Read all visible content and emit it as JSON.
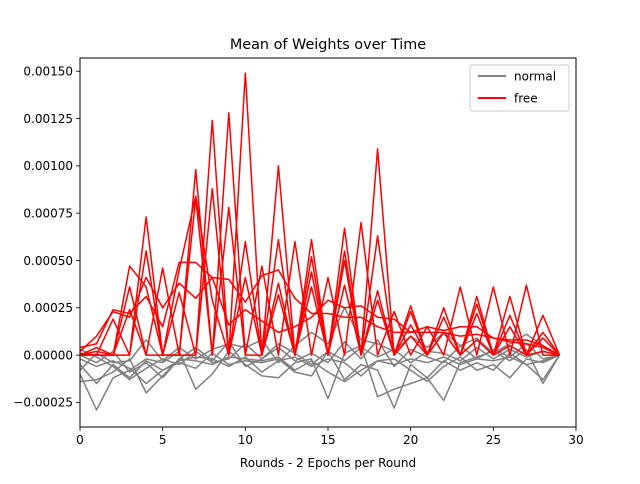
{
  "chart_data": {
    "type": "line",
    "title": "Mean of Weights over Time",
    "xlabel": "Rounds - 2 Epochs per Round",
    "ylabel": "",
    "xlim": [
      0,
      30
    ],
    "ylim": [
      -0.00038,
      0.00157
    ],
    "xticks": [
      0,
      5,
      10,
      15,
      20,
      25,
      30
    ],
    "xtick_labels": [
      "0",
      "5",
      "10",
      "15",
      "20",
      "25",
      "30"
    ],
    "yticks": [
      -0.00025,
      0,
      0.00025,
      0.0005,
      0.00075,
      0.001,
      0.00125,
      0.0015
    ],
    "ytick_labels": [
      "−0.00025",
      "0.00000",
      "0.00025",
      "0.00050",
      "0.00075",
      "0.00100",
      "0.00125",
      "0.00150"
    ],
    "grid": false,
    "legend": {
      "placement": "top-right",
      "entries": [
        {
          "label": "normal",
          "color": "#808080"
        },
        {
          "label": "free",
          "color": "#ff0000"
        }
      ]
    },
    "x": [
      0,
      1,
      2,
      3,
      4,
      5,
      6,
      7,
      8,
      9,
      10,
      11,
      12,
      13,
      14,
      15,
      16,
      17,
      18,
      19,
      20,
      21,
      22,
      23,
      24,
      25,
      26,
      27,
      28,
      29
    ],
    "series_groups": [
      {
        "label": "normal",
        "color": "#808080",
        "series": [
          [
            -0.0001,
            -0.00029,
            -0.00012,
            -8e-05,
            -2e-05,
            -4e-05,
            2e-05,
            -0.00018,
            -0.0001,
            2e-05,
            -5e-05,
            -0.00011,
            -0.00012,
            -4e-05,
            -2e-05,
            -0.00023,
            1e-05,
            5e-05,
            -0.00022,
            -0.00018,
            -0.00015,
            -0.00012,
            -0.00024,
            -4e-05,
            -1e-05,
            2e-05,
            -3e-05,
            3e-05,
            -0.00015,
            0
          ],
          [
            -5e-05,
            -0.00015,
            -5e-05,
            -0.00012,
            -3e-05,
            -8e-05,
            -4e-05,
            -7e-05,
            1e-05,
            -5e-05,
            -3e-05,
            -4e-05,
            -2e-05,
            -9e-05,
            -0.00011,
            2e-05,
            -0.00013,
            -5e-05,
            -8e-05,
            -0.00028,
            -5e-05,
            -0.00012,
            -3e-05,
            -8e-05,
            -4e-05,
            -8e-05,
            1e-05,
            -5e-05,
            -0.00013,
            0
          ],
          [
            -0.00014,
            -0.00013,
            -9e-05,
            -2e-05,
            -0.0002,
            -0.00011,
            -2e-05,
            -3e-05,
            -5e-05,
            -1e-05,
            -2e-05,
            -3e-05,
            -1e-05,
            -8e-05,
            -3e-05,
            -9e-05,
            -0.00014,
            -8e-05,
            -3e-05,
            -2e-05,
            -8e-05,
            -0.00014,
            -6e-05,
            -1e-05,
            -8e-05,
            -5e-05,
            -0.00012,
            -2e-05,
            -4e-05,
            0
          ],
          [
            -2e-05,
            -6e-05,
            -3e-05,
            -7e-05,
            -0.00015,
            -8e-05,
            -3e-05,
            -1e-05,
            -2e-05,
            -6e-05,
            -1e-05,
            -9e-05,
            -3e-05,
            -1e-05,
            -6e-05,
            -2e-05,
            -4e-05,
            -0.00011,
            -3e-05,
            -5e-05,
            -2e-05,
            -4e-05,
            -1e-05,
            -5e-05,
            -2e-05,
            -3e-05,
            -1e-05,
            -5e-05,
            -3e-05,
            0
          ],
          [
            3e-05,
            -1e-05,
            -6e-05,
            -0.00013,
            -7e-05,
            -2e-05,
            -5e-05,
            2e-05,
            -4e-05,
            -2e-05,
            6e-05,
            -2e-05,
            4e-05,
            -3e-05,
            1e-05,
            -4e-05,
            7e-05,
            -2e-05,
            8e-05,
            -6e-05,
            3e-05,
            -1e-05,
            -4e-05,
            5e-05,
            -2e-05,
            3e-05,
            -1e-05,
            6e-05,
            -2e-05,
            0
          ],
          [
            -8e-05,
            1e-05,
            -4e-05,
            -3e-05,
            8e-05,
            -3e-05,
            4e-05,
            -2e-05,
            3e-05,
            6e-05,
            4e-05,
            8e-05,
            -4e-05,
            5e-05,
            0.00012,
            6e-05,
            0.00025,
            8e-05,
            6e-05,
            2e-05,
            0.0001,
            4e-05,
            0.00012,
            5e-05,
            9e-05,
            1e-05,
            6e-05,
            0.00011,
            5e-05,
            0
          ],
          [
            0,
            -4e-05,
            2e-05,
            -9e-05,
            -4e-05,
            -0.00012,
            -2e-05,
            4e-05,
            -3e-05,
            7e-05,
            -6e-05,
            -2e-05,
            6e-05,
            1e-05,
            -5e-05,
            2e-05,
            -3e-05,
            4e-05,
            -1e-05,
            3e-05,
            -4e-05,
            2e-05,
            1e-05,
            -3e-05,
            4e-05,
            -2e-05,
            3e-05,
            -1e-05,
            2e-05,
            0
          ]
        ]
      },
      {
        "label": "free",
        "color": "#ff0000",
        "series": [
          [
            4e-05,
            6e-05,
            0.00024,
            0.00022,
            0.00031,
            0.00015,
            0.00049,
            0.00049,
            0.00041,
            0.0004,
            0.00028,
            0.00042,
            0.00045,
            0.0003,
            0.00022,
            0.00022,
            0.0002,
            0.0002,
            0.00015,
            0.00012,
            0.00012,
            0.00012,
            0.00012,
            0.0001,
            0.00011,
            9e-05,
            7e-05,
            6e-05,
            4e-05,
            0
          ],
          [
            2e-05,
            0.0001,
            0.00023,
            0.0002,
            0.00041,
            0.00025,
            0.00038,
            0.0003,
            0.00041,
            0.00016,
            0.00024,
            0.00018,
            0.00012,
            0.00015,
            0.0002,
            0.00029,
            0.00025,
            0.00026,
            0.0002,
            0.00019,
            0.00012,
            0.00015,
            0.00013,
            0.00015,
            0.00015,
            9e-05,
            8e-05,
            8e-05,
            5e-05,
            0
          ],
          [
            0,
            4e-05,
            0,
            0.00047,
            0.00036,
            0,
            0.00045,
            0.00084,
            0.00029,
            0,
            0.0006,
            0,
            0.00032,
            0,
            0.00036,
            0,
            0.0005,
            0,
            0.00029,
            0,
            0.00016,
            0,
            0.00012,
            0,
            8e-05,
            0,
            5e-05,
            0,
            2e-05,
            0
          ],
          [
            0,
            0,
            0.00019,
            0,
            0.00073,
            0,
            0,
            0.00098,
            0,
            0.00128,
            0,
            0.00047,
            0,
            0.0006,
            0,
            0.00041,
            0,
            0.0007,
            0,
            0.00023,
            0,
            0.00015,
            0,
            0.00036,
            0,
            0.00036,
            0,
            0.00037,
            0,
            0
          ],
          [
            1e-05,
            0,
            0,
            0.00036,
            0,
            0.00046,
            0,
            0,
            0.00124,
            0,
            0.00149,
            0,
            0.001,
            0,
            0.00061,
            0,
            0.00037,
            0,
            0.00109,
            0,
            0.00026,
            0,
            0.00025,
            0,
            0.00031,
            0,
            0.00031,
            0,
            0.00021,
            0
          ],
          [
            0,
            0,
            0,
            0,
            0.00055,
            0,
            0,
            0.00083,
            0,
            0.00078,
            0,
            0,
            0.00061,
            0,
            0.00044,
            0,
            0.00067,
            0,
            0.00063,
            0,
            0.00023,
            0,
            0.0002,
            0,
            0.00027,
            0,
            0.00021,
            0,
            0.00012,
            0
          ],
          [
            0,
            2e-05,
            0,
            0.00024,
            0,
            0,
            0.00033,
            0,
            0.00088,
            0,
            0.00041,
            0,
            0.00038,
            0,
            0.00052,
            0,
            0.00055,
            0,
            0.00034,
            0,
            0.0001,
            0,
            0.00012,
            0,
            0.00022,
            0,
            0.00015,
            0,
            9e-05,
            0
          ]
        ]
      }
    ]
  }
}
